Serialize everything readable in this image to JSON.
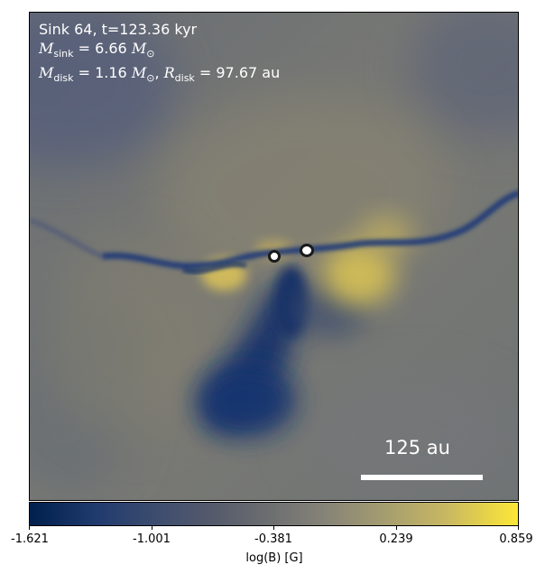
{
  "annotation": {
    "line1": "Sink 64, t=123.36 kyr",
    "m_sink_symbol": "M",
    "m_sink_sub": "sink",
    "m_sink_value": " = 6.66",
    "m_sink_unit": "M",
    "m_sink_unit_sub": "⊙",
    "m_disk_symbol": "M",
    "m_disk_sub": "disk",
    "m_disk_value": " = 1.16",
    "m_disk_unit": "M",
    "m_disk_unit_sub": "⊙",
    "r_disk_symbol": "R",
    "r_disk_sub": "disk",
    "r_disk_value": " = 97.67 au"
  },
  "scalebar": {
    "label": "125 au"
  },
  "colorbar": {
    "label": "log(B) [G]",
    "ticks": [
      "-1.621",
      "-1.001",
      "-0.381",
      "0.239",
      "0.859"
    ],
    "min": -1.621,
    "max": 0.859,
    "colormap": "cividis",
    "colors": [
      "#00204c",
      "#565b6c",
      "#6e7070",
      "#a39b70",
      "#fde737"
    ]
  }
}
